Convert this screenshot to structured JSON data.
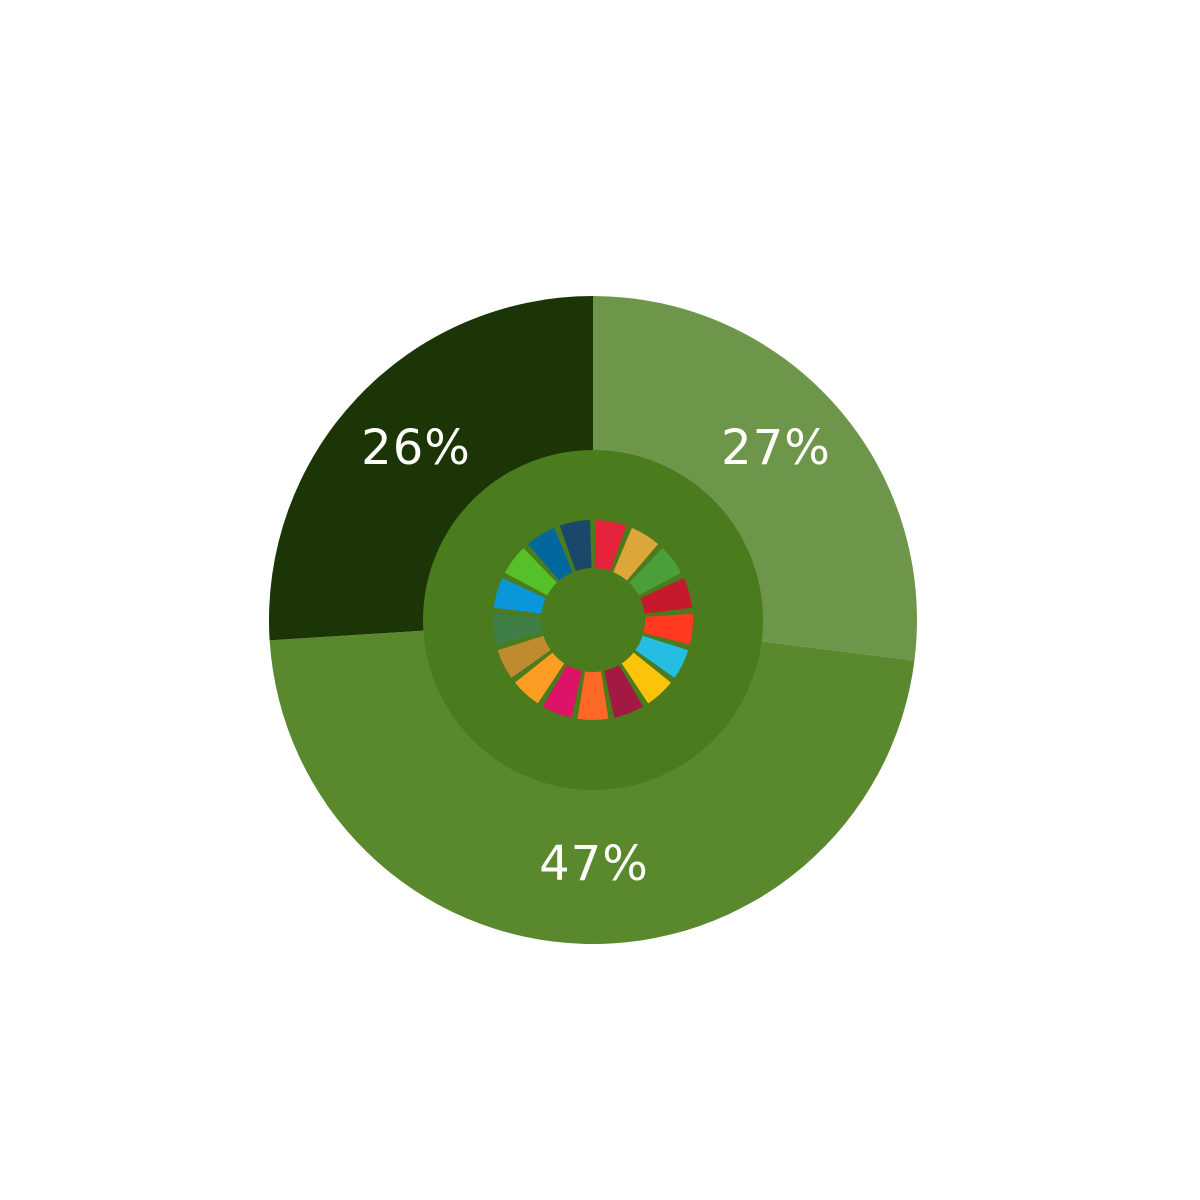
{
  "chart_data": {
    "type": "pie",
    "categories": [
      "",
      "",
      ""
    ],
    "values": [
      27,
      47,
      26
    ],
    "labels": [
      "27%",
      "47%",
      "26%"
    ],
    "colors": [
      "#6e964a",
      "#5a882d",
      "#1c3506"
    ],
    "center_disc_color": "#4a7b1c",
    "title": "",
    "legend": "none"
  },
  "emblem": {
    "segment_colors": [
      "#e5243b",
      "#dda63a",
      "#4c9f38",
      "#c5192d",
      "#ff3a21",
      "#26bde2",
      "#fcc30b",
      "#a21942",
      "#fd6925",
      "#dd1367",
      "#fd9d24",
      "#bf8b2e",
      "#3f7e44",
      "#0a97d9",
      "#56c02b",
      "#00689d",
      "#19486a"
    ]
  }
}
